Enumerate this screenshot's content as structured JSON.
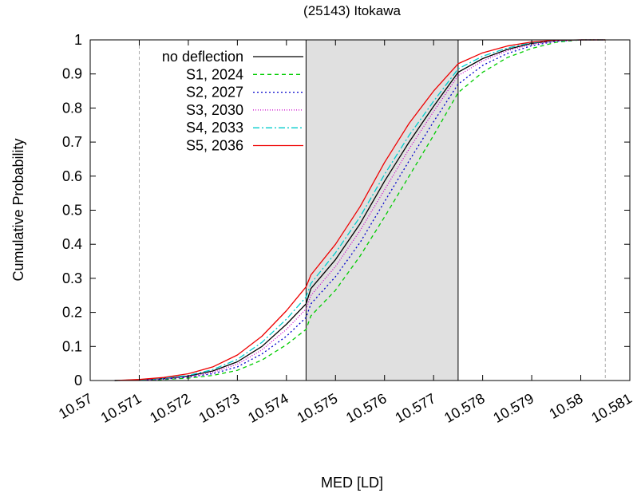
{
  "chart_data": {
    "type": "line",
    "title": "(25143) Itokawa",
    "xlabel": "MED [LD]",
    "ylabel": "Cumulative Probability",
    "xlim": [
      10.57,
      10.581
    ],
    "ylim": [
      0,
      1
    ],
    "xticks": [
      "10.57",
      "10.571",
      "10.572",
      "10.573",
      "10.574",
      "10.575",
      "10.576",
      "10.577",
      "10.578",
      "10.579",
      "10.58",
      "10.581"
    ],
    "yticks": [
      "0",
      "0.1",
      "0.2",
      "0.3",
      "0.4",
      "0.5",
      "0.6",
      "0.7",
      "0.8",
      "0.9",
      "1"
    ],
    "shaded_band": [
      10.5744,
      10.5775
    ],
    "vlines": [
      10.571,
      10.5805
    ],
    "legend_position": "top-left",
    "grid": false,
    "series": [
      {
        "name": "no deflection",
        "color": "#000000",
        "dash": "",
        "x": [
          10.5705,
          10.571,
          10.5715,
          10.572,
          10.5725,
          10.573,
          10.5735,
          10.574,
          10.5744,
          10.5745,
          10.575,
          10.5755,
          10.576,
          10.5765,
          10.577,
          10.5775,
          10.578,
          10.5785,
          10.579,
          10.5795,
          10.58,
          10.5805
        ],
        "y": [
          0.0,
          0.002,
          0.006,
          0.013,
          0.028,
          0.055,
          0.1,
          0.165,
          0.225,
          0.27,
          0.355,
          0.46,
          0.585,
          0.7,
          0.805,
          0.905,
          0.945,
          0.972,
          0.99,
          0.998,
          1.0,
          1.0
        ]
      },
      {
        "name": "S1, 2024",
        "color": "#00cc00",
        "dash": "5,4",
        "x": [
          10.5705,
          10.571,
          10.5715,
          10.572,
          10.5725,
          10.573,
          10.5735,
          10.574,
          10.5744,
          10.5745,
          10.575,
          10.5755,
          10.576,
          10.5765,
          10.577,
          10.5775,
          10.578,
          10.5785,
          10.579,
          10.5795,
          10.58,
          10.5805
        ],
        "y": [
          0.0,
          0.001,
          0.003,
          0.007,
          0.015,
          0.03,
          0.06,
          0.105,
          0.15,
          0.19,
          0.265,
          0.365,
          0.48,
          0.6,
          0.72,
          0.845,
          0.905,
          0.948,
          0.975,
          0.993,
          1.0,
          1.0
        ]
      },
      {
        "name": "S2, 2027",
        "color": "#0000cc",
        "dash": "2,3",
        "x": [
          10.5705,
          10.571,
          10.5715,
          10.572,
          10.5725,
          10.573,
          10.5735,
          10.574,
          10.5744,
          10.5745,
          10.575,
          10.5755,
          10.576,
          10.5765,
          10.577,
          10.5775,
          10.578,
          10.5785,
          10.579,
          10.5795,
          10.58,
          10.5805
        ],
        "y": [
          0.0,
          0.001,
          0.004,
          0.01,
          0.02,
          0.04,
          0.078,
          0.13,
          0.185,
          0.225,
          0.305,
          0.405,
          0.525,
          0.645,
          0.76,
          0.87,
          0.925,
          0.96,
          0.983,
          0.996,
          1.0,
          1.0
        ]
      },
      {
        "name": "S3, 2030",
        "color": "#cc00cc",
        "dash": "1,2",
        "x": [
          10.5705,
          10.571,
          10.5715,
          10.572,
          10.5725,
          10.573,
          10.5735,
          10.574,
          10.5744,
          10.5745,
          10.575,
          10.5755,
          10.576,
          10.5765,
          10.577,
          10.5775,
          10.578,
          10.5785,
          10.579,
          10.5795,
          10.58,
          10.5805
        ],
        "y": [
          0.0,
          0.001,
          0.005,
          0.011,
          0.024,
          0.048,
          0.09,
          0.15,
          0.21,
          0.25,
          0.335,
          0.44,
          0.56,
          0.68,
          0.79,
          0.895,
          0.938,
          0.968,
          0.987,
          0.997,
          1.0,
          1.0
        ]
      },
      {
        "name": "S4, 2033",
        "color": "#00cccc",
        "dash": "8,3,2,3",
        "x": [
          10.5705,
          10.571,
          10.5715,
          10.572,
          10.5725,
          10.573,
          10.5735,
          10.574,
          10.5744,
          10.5745,
          10.575,
          10.5755,
          10.576,
          10.5765,
          10.577,
          10.5775,
          10.578,
          10.5785,
          10.579,
          10.5795,
          10.58,
          10.5805
        ],
        "y": [
          0.0,
          0.002,
          0.007,
          0.015,
          0.032,
          0.062,
          0.112,
          0.18,
          0.245,
          0.285,
          0.375,
          0.48,
          0.605,
          0.72,
          0.82,
          0.915,
          0.952,
          0.976,
          0.992,
          0.998,
          1.0,
          1.0
        ]
      },
      {
        "name": "S5, 2036",
        "color": "#ee0000",
        "dash": "",
        "x": [
          10.5705,
          10.571,
          10.5715,
          10.572,
          10.5725,
          10.573,
          10.5735,
          10.574,
          10.5744,
          10.5745,
          10.575,
          10.5755,
          10.576,
          10.5765,
          10.577,
          10.5775,
          10.578,
          10.5785,
          10.579,
          10.5795,
          10.58,
          10.5805
        ],
        "y": [
          0.0,
          0.003,
          0.009,
          0.02,
          0.04,
          0.075,
          0.13,
          0.205,
          0.275,
          0.31,
          0.4,
          0.51,
          0.64,
          0.755,
          0.85,
          0.93,
          0.962,
          0.982,
          0.994,
          0.999,
          1.0,
          1.0
        ]
      }
    ]
  }
}
